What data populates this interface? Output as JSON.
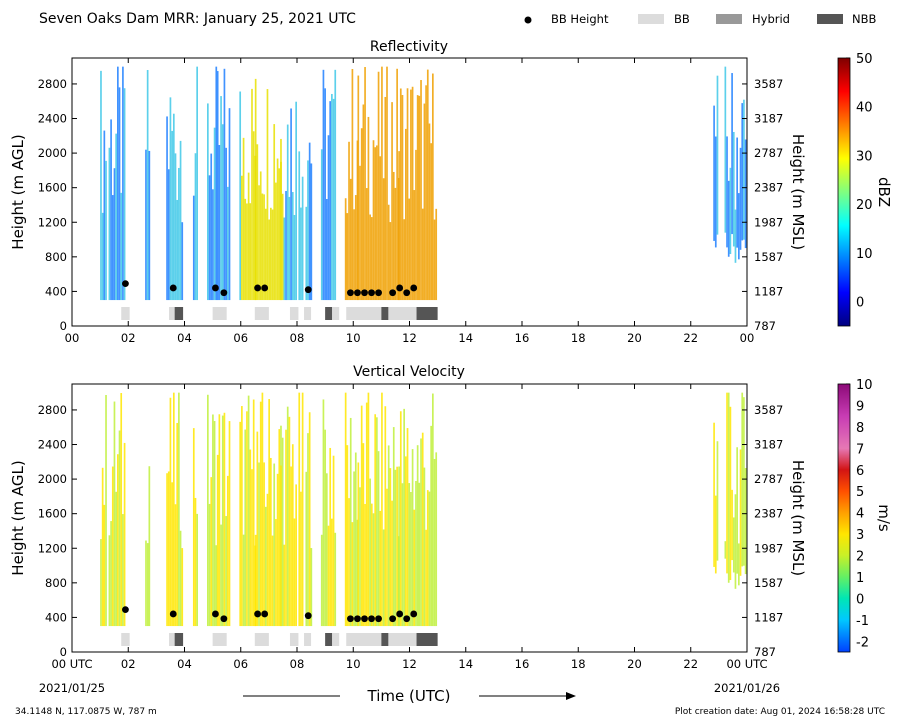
{
  "header": {
    "title": "Seven Oaks Dam MRR:  January 25, 2021 UTC",
    "legend": [
      {
        "label": "BB Height",
        "kind": "dot",
        "color": "#000000"
      },
      {
        "label": "BB",
        "kind": "box",
        "color": "#dcdcdc"
      },
      {
        "label": "Hybrid",
        "kind": "box",
        "color": "#999999"
      },
      {
        "label": "NBB",
        "kind": "box",
        "color": "#555555"
      }
    ]
  },
  "footer": {
    "xlabel": "Time (UTC)",
    "location": "34.1148 N, 117.0875 W, 787 m",
    "created": "Plot creation date: Aug 01, 2024 16:58:28 UTC",
    "start_date": "2021/01/25",
    "end_date": "2021/01/26"
  },
  "chart_data": [
    {
      "type": "heatmap",
      "title": "Reflectivity",
      "ylabel": "Height (m AGL)",
      "ylabel_right": "Height (m MSL)",
      "xlim": [
        0,
        24
      ],
      "ylim": [
        0,
        3100
      ],
      "x_ticks": [
        "00",
        "02",
        "04",
        "06",
        "08",
        "10",
        "12",
        "14",
        "16",
        "18",
        "20",
        "22",
        "00"
      ],
      "y_ticks": [
        "0",
        "400",
        "800",
        "1200",
        "1600",
        "2000",
        "2400",
        "2800"
      ],
      "y_ticks_right": [
        "787",
        "1187",
        "1587",
        "1987",
        "2387",
        "2787",
        "3187",
        "3587"
      ],
      "colorbar": {
        "label": "dBZ",
        "min": -5,
        "max": 50,
        "ticks": [
          "0",
          "10",
          "20",
          "30",
          "40",
          "50"
        ],
        "tick_values": [
          0,
          10,
          20,
          30,
          40,
          50
        ]
      },
      "bb_height": [
        {
          "t": 1.9,
          "h": 490
        },
        {
          "t": 3.6,
          "h": 440
        },
        {
          "t": 5.1,
          "h": 440
        },
        {
          "t": 5.4,
          "h": 385
        },
        {
          "t": 6.6,
          "h": 440
        },
        {
          "t": 6.85,
          "h": 440
        },
        {
          "t": 8.4,
          "h": 420
        },
        {
          "t": 9.9,
          "h": 385
        },
        {
          "t": 10.15,
          "h": 385
        },
        {
          "t": 10.4,
          "h": 385
        },
        {
          "t": 10.65,
          "h": 385
        },
        {
          "t": 10.9,
          "h": 385
        },
        {
          "t": 11.4,
          "h": 385
        },
        {
          "t": 11.65,
          "h": 440
        },
        {
          "t": 11.9,
          "h": 385
        },
        {
          "t": 12.15,
          "h": 440
        }
      ],
      "bb_type": [
        {
          "start": 1.75,
          "end": 2.05,
          "type": "BB"
        },
        {
          "start": 3.45,
          "end": 3.65,
          "type": "BB"
        },
        {
          "start": 3.65,
          "end": 3.95,
          "type": "NBB"
        },
        {
          "start": 5.0,
          "end": 5.5,
          "type": "BB"
        },
        {
          "start": 6.5,
          "end": 7.0,
          "type": "BB"
        },
        {
          "start": 7.75,
          "end": 8.05,
          "type": "BB"
        },
        {
          "start": 8.25,
          "end": 8.5,
          "type": "BB"
        },
        {
          "start": 9.0,
          "end": 9.25,
          "type": "NBB"
        },
        {
          "start": 9.25,
          "end": 9.5,
          "type": "BB"
        },
        {
          "start": 9.75,
          "end": 11.0,
          "type": "BB"
        },
        {
          "start": 11.0,
          "end": 11.25,
          "type": "NBB"
        },
        {
          "start": 11.25,
          "end": 12.25,
          "type": "BB"
        },
        {
          "start": 12.25,
          "end": 13.0,
          "type": "NBB"
        }
      ]
    },
    {
      "type": "heatmap",
      "title": "Vertical Velocity",
      "ylabel": "Height (m AGL)",
      "ylabel_right": "Height (m MSL)",
      "xlim": [
        0,
        24
      ],
      "ylim": [
        0,
        3100
      ],
      "x_ticks": [
        "00 UTC",
        "02",
        "04",
        "06",
        "08",
        "10",
        "12",
        "14",
        "16",
        "18",
        "20",
        "22",
        "00 UTC"
      ],
      "y_ticks": [
        "0",
        "400",
        "800",
        "1200",
        "1600",
        "2000",
        "2400",
        "2800"
      ],
      "y_ticks_right": [
        "787",
        "1187",
        "1587",
        "1987",
        "2387",
        "2787",
        "3187",
        "3587"
      ],
      "colorbar": {
        "label": "m/s",
        "min": -2.5,
        "max": 10,
        "ticks": [
          "-2",
          "-1",
          "0",
          "1",
          "2",
          "3",
          "4",
          "5",
          "6",
          "7",
          "8",
          "9",
          "10"
        ],
        "tick_values": [
          -2,
          -1,
          0,
          1,
          2,
          3,
          4,
          5,
          6,
          7,
          8,
          9,
          10
        ]
      },
      "bb_height": [
        {
          "t": 1.9,
          "h": 490
        },
        {
          "t": 3.6,
          "h": 440
        },
        {
          "t": 5.1,
          "h": 440
        },
        {
          "t": 5.4,
          "h": 385
        },
        {
          "t": 6.6,
          "h": 440
        },
        {
          "t": 6.85,
          "h": 440
        },
        {
          "t": 8.4,
          "h": 420
        },
        {
          "t": 9.9,
          "h": 385
        },
        {
          "t": 10.15,
          "h": 385
        },
        {
          "t": 10.4,
          "h": 385
        },
        {
          "t": 10.65,
          "h": 385
        },
        {
          "t": 10.9,
          "h": 385
        },
        {
          "t": 11.4,
          "h": 385
        },
        {
          "t": 11.65,
          "h": 440
        },
        {
          "t": 11.9,
          "h": 385
        },
        {
          "t": 12.15,
          "h": 440
        }
      ],
      "bb_type": [
        {
          "start": 1.75,
          "end": 2.05,
          "type": "BB"
        },
        {
          "start": 3.45,
          "end": 3.65,
          "type": "BB"
        },
        {
          "start": 3.65,
          "end": 3.95,
          "type": "NBB"
        },
        {
          "start": 5.0,
          "end": 5.5,
          "type": "BB"
        },
        {
          "start": 6.5,
          "end": 7.0,
          "type": "BB"
        },
        {
          "start": 7.75,
          "end": 8.05,
          "type": "BB"
        },
        {
          "start": 8.25,
          "end": 8.5,
          "type": "BB"
        },
        {
          "start": 9.0,
          "end": 9.25,
          "type": "NBB"
        },
        {
          "start": 9.25,
          "end": 9.5,
          "type": "BB"
        },
        {
          "start": 9.75,
          "end": 11.0,
          "type": "BB"
        },
        {
          "start": 11.0,
          "end": 11.25,
          "type": "NBB"
        },
        {
          "start": 11.25,
          "end": 12.25,
          "type": "BB"
        },
        {
          "start": 12.25,
          "end": 13.0,
          "type": "NBB"
        }
      ]
    }
  ]
}
